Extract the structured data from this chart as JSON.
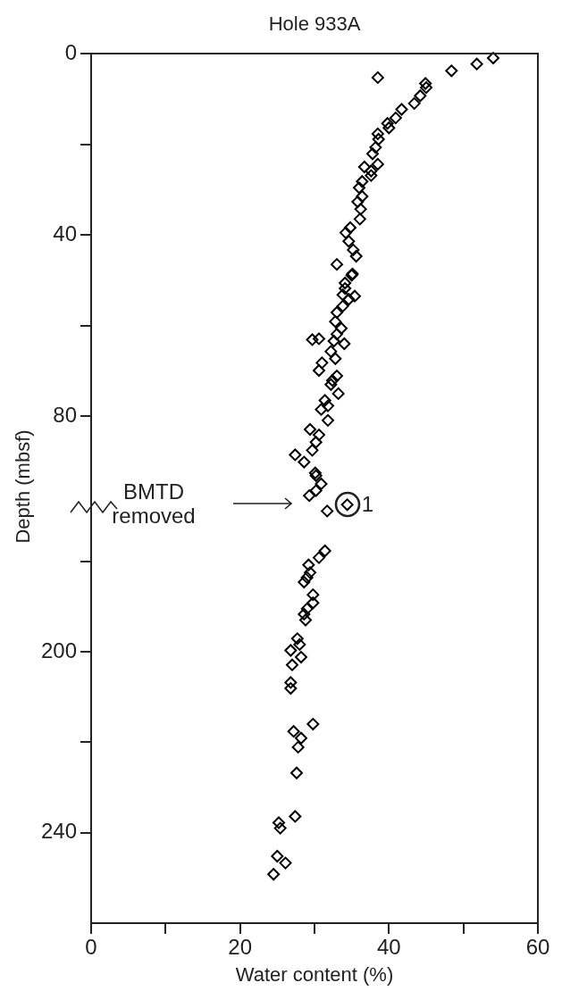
{
  "chart_data": [
    {
      "type": "scatter",
      "title": "Hole 933A",
      "ylabel": "Depth (mbsf)",
      "color": "#000000",
      "marker": "diamond",
      "x": [
        54.0,
        51.8,
        48.4,
        38.5,
        44.9,
        45.0,
        44.2,
        43.4,
        41.7,
        40.9,
        39.8,
        40.0,
        38.5,
        38.6,
        38.2,
        37.8,
        38.5,
        36.7,
        37.6,
        37.6,
        36.4,
        36.0,
        36.4,
        35.8,
        36.2,
        36.1,
        34.8,
        34.2,
        34.6,
        35.2,
        35.6,
        33.0,
        35.1,
        35.0,
        34.1,
        34.1,
        33.8,
        35.4,
        34.6,
        33.8,
        33.0,
        32.8,
        33.6,
        33.0,
        29.7,
        30.6,
        32.6,
        34.0,
        32.2,
        32.8,
        31.0,
        30.6,
        33.0,
        32.4,
        32.2,
        33.2,
        31.4,
        31.8,
        30.9,
        31.8,
        29.4,
        30.6,
        30.2,
        29.7,
        27.4,
        28.6,
        30.1,
        30.2,
        30.9,
        30.2,
        29.3,
        34.4,
        31.7
      ],
      "values": [
        1.0,
        2.3,
        3.8,
        5.3,
        6.6,
        7.5,
        9.3,
        11.0,
        12.3,
        14.2,
        15.4,
        16.4,
        17.7,
        18.9,
        20.7,
        22.1,
        24.4,
        25.0,
        25.9,
        26.9,
        28.2,
        29.6,
        31.5,
        32.7,
        34.3,
        36.5,
        38.4,
        39.5,
        41.4,
        43.3,
        44.7,
        46.5,
        48.6,
        48.9,
        50.6,
        51.8,
        53.2,
        53.5,
        54.2,
        55.7,
        57.1,
        59.1,
        60.6,
        61.9,
        63.1,
        62.9,
        63.4,
        64.0,
        65.7,
        67.3,
        68.2,
        69.9,
        71.1,
        72.1,
        73.0,
        75.0,
        76.5,
        77.7,
        78.5,
        80.9,
        82.9,
        84.1,
        85.7,
        87.5,
        88.5,
        90.1,
        92.5,
        93.1,
        94.9,
        96.4,
        97.5,
        99.5,
        100.9
      ],
      "xlim": [
        0,
        60
      ],
      "ylim": [
        102,
        0
      ],
      "yticks": [
        0,
        {
          "value": 20,
          "label": null
        },
        40,
        {
          "value": 60,
          "label": null
        },
        80
      ],
      "tick_labels": "y",
      "annotations": [
        "BMTD removed",
        {
          "text": "1",
          "x": 34.4,
          "y": 99.5
        }
      ]
    },
    {
      "type": "scatter",
      "xlabel": "Water content (%)",
      "color": "#000000",
      "marker": "diamond",
      "x": [
        31.4,
        30.6,
        29.2,
        29.4,
        28.6,
        29.0,
        29.8,
        29.8,
        29.0,
        28.6,
        28.8,
        27.7,
        28.0,
        26.8,
        28.2,
        27.0,
        26.8,
        26.8,
        29.8,
        27.2,
        28.2,
        27.8,
        27.6,
        27.4,
        25.2,
        25.4,
        25.0,
        26.1,
        24.5
      ],
      "values": [
        177.7,
        179.2,
        180.8,
        182.5,
        184.6,
        183.6,
        187.4,
        189.2,
        190.5,
        191.7,
        193.0,
        197.1,
        198.4,
        199.7,
        201.2,
        202.9,
        206.8,
        208.1,
        216.0,
        217.6,
        219.1,
        221.1,
        226.8,
        236.4,
        237.8,
        239.0,
        245.2,
        246.7,
        249.2
      ],
      "xlim": [
        0,
        60
      ],
      "xticks": [
        0,
        {
          "value": 10,
          "label": null
        },
        20,
        {
          "value": 30,
          "label": null
        },
        40,
        {
          "value": 50,
          "label": null
        },
        60
      ],
      "ylim": [
        260,
        170
      ],
      "yticks": [
        {
          "value": 180,
          "label": null
        },
        200,
        {
          "value": 220,
          "label": null
        },
        240
      ]
    }
  ]
}
